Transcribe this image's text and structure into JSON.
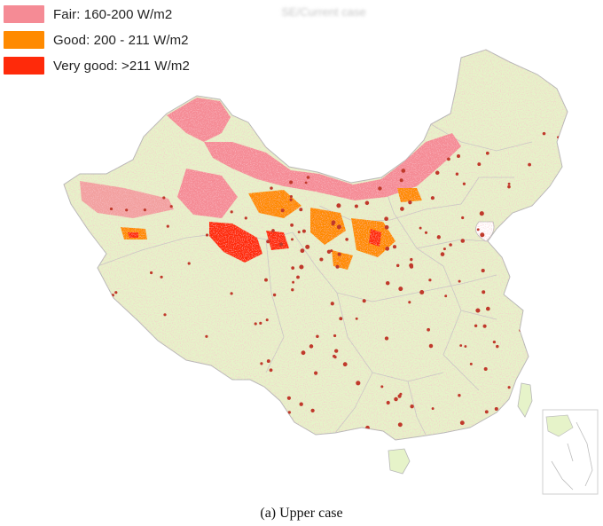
{
  "title": "SE/Current case",
  "legend": [
    {
      "label": "Fair: 160-200 W/m2",
      "color": "#f58b95"
    },
    {
      "label": "Good: 200 - 211 W/m2",
      "color": "#ff8a00"
    },
    {
      "label": "Very good: >211 W/m2",
      "color": "#ff2a0a"
    }
  ],
  "caption": "(a) Upper case",
  "colors": {
    "land": "#e6f3c9",
    "border": "#b7b7b7",
    "fair": "#f58b95",
    "good": "#ff8a00",
    "very_good": "#ff2a0a",
    "city": "#c0392b"
  }
}
